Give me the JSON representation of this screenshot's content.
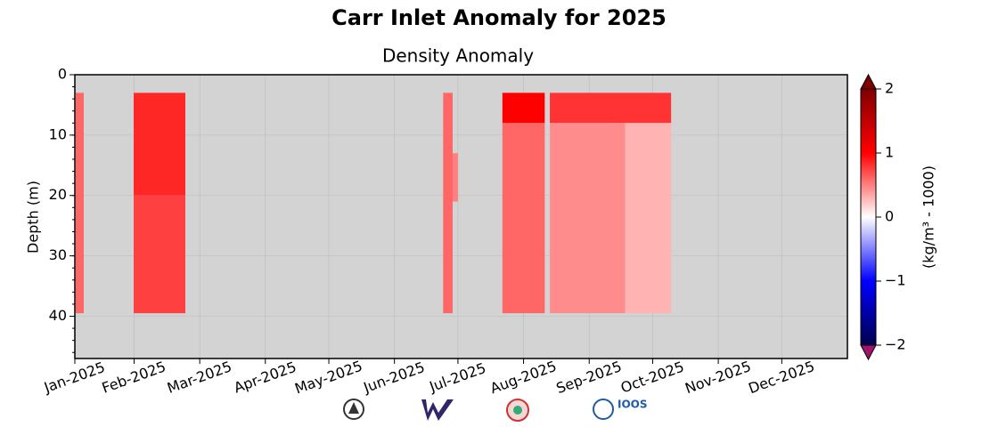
{
  "chart_data": {
    "type": "heatmap",
    "title": "Carr Inlet Anomaly for 2025",
    "subtitle": "Density Anomaly",
    "ylabel": "Depth (m)",
    "colorbar_label": "(kg/m³ - 1000)",
    "colormap": "seismic",
    "background": "#d3d3d3",
    "grid": true,
    "xlim": [
      0,
      365
    ],
    "xticks": [
      {
        "value": 0,
        "label": "Jan-2025"
      },
      {
        "value": 28,
        "label": "Feb-2025"
      },
      {
        "value": 59,
        "label": "Mar-2025"
      },
      {
        "value": 90,
        "label": "Apr-2025"
      },
      {
        "value": 120,
        "label": "May-2025"
      },
      {
        "value": 151,
        "label": "Jun-2025"
      },
      {
        "value": 181,
        "label": "Jul-2025"
      },
      {
        "value": 212,
        "label": "Aug-2025"
      },
      {
        "value": 243,
        "label": "Sep-2025"
      },
      {
        "value": 273,
        "label": "Oct-2025"
      },
      {
        "value": 304,
        "label": "Nov-2025"
      },
      {
        "value": 334,
        "label": "Dec-2025"
      }
    ],
    "ylim": [
      47,
      0
    ],
    "yticks": [
      0,
      10,
      20,
      30,
      40
    ],
    "clim": [
      -2,
      2
    ],
    "cticks": [
      {
        "value": -2,
        "label": "−2"
      },
      {
        "value": -1,
        "label": "−1"
      },
      0,
      1,
      2
    ],
    "cells": [
      {
        "x": [
          0.4,
          4.2
        ],
        "depth": [
          3,
          39.5
        ],
        "value": 0.6
      },
      {
        "x": [
          27.8,
          52.2
        ],
        "depth": [
          3,
          20
        ],
        "value": 0.85
      },
      {
        "x": [
          27.8,
          52.2
        ],
        "depth": [
          20,
          39.5
        ],
        "value": 0.75
      },
      {
        "x": [
          174,
          178.5
        ],
        "depth": [
          3,
          39.5
        ],
        "value": 0.6
      },
      {
        "x": [
          178.5,
          181
        ],
        "depth": [
          13,
          21
        ],
        "value": 0.5
      },
      {
        "x": [
          202,
          222
        ],
        "depth": [
          3,
          8
        ],
        "value": 1.0
      },
      {
        "x": [
          202,
          222
        ],
        "depth": [
          8,
          39.5
        ],
        "value": 0.6
      },
      {
        "x": [
          224.4,
          281.7
        ],
        "depth": [
          3,
          8
        ],
        "value": 0.8
      },
      {
        "x": [
          224.4,
          260
        ],
        "depth": [
          8,
          39.5
        ],
        "value": 0.45
      },
      {
        "x": [
          260,
          281.7
        ],
        "depth": [
          8,
          39.5
        ],
        "value": 0.3
      }
    ],
    "logos": {
      "ioos": "IOOS"
    }
  }
}
